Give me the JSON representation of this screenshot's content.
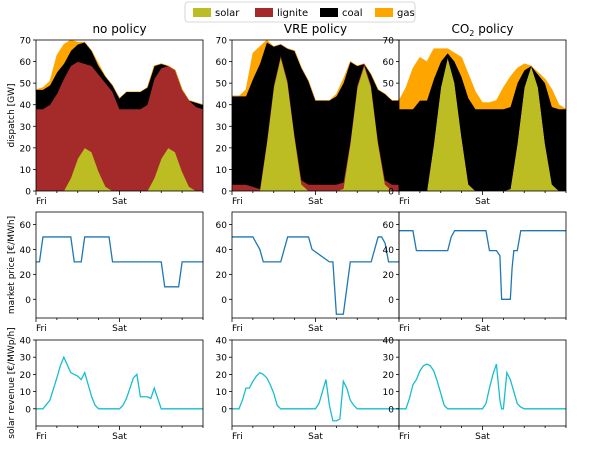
{
  "legend": {
    "placement": "top-center",
    "entries": [
      {
        "label": "solar",
        "color": "#bcbd22"
      },
      {
        "label": "lignite",
        "color": "#a52a2a"
      },
      {
        "label": "coal",
        "color": "#000000"
      },
      {
        "label": "gas",
        "color": "#ffa500"
      }
    ]
  },
  "columns": [
    {
      "title": "no policy"
    },
    {
      "title": "VRE policy"
    },
    {
      "title_prefix": "CO",
      "title_sub": "2",
      "title_suffix": " policy"
    }
  ],
  "rows": [
    {
      "ylabel": "dispatch [GW]"
    },
    {
      "ylabel": "market price [€/MWh]"
    },
    {
      "ylabel": "solar revenue [€/MWp/h]"
    }
  ],
  "x_ticks": [
    "Fri",
    "Sat"
  ],
  "colors": {
    "dispatch": [
      "#bcbd22",
      "#a52a2a",
      "#000000",
      "#ffa500"
    ],
    "price": "#1f77b4",
    "revenue": "#17becf"
  },
  "chart_data": [
    {
      "type": "area",
      "stacked": true,
      "panel": "no policy dispatch",
      "x_unit": "hours from Fri 00:00",
      "x": [
        0,
        2,
        4,
        6,
        8,
        10,
        12,
        14,
        16,
        18,
        20,
        22,
        24,
        26,
        28,
        30,
        32,
        34,
        36,
        38,
        40,
        42,
        44,
        46,
        48
      ],
      "ylim": [
        0,
        70
      ],
      "yticks": [
        0,
        10,
        20,
        30,
        40,
        50,
        60,
        70
      ],
      "series": [
        {
          "name": "solar",
          "values": [
            0,
            0,
            0,
            0,
            0,
            6,
            15,
            20,
            18,
            9,
            2,
            0,
            0,
            0,
            0,
            0,
            0,
            6,
            15,
            20,
            18,
            9,
            2,
            0,
            0
          ]
        },
        {
          "name": "lignite",
          "values": [
            38,
            38,
            40,
            45,
            52,
            52,
            45,
            39,
            40,
            45,
            48,
            46,
            38,
            38,
            38,
            38,
            40,
            46,
            42,
            38,
            38,
            38,
            40,
            39,
            38
          ]
        },
        {
          "name": "coal",
          "values": [
            9,
            9,
            9,
            10,
            7,
            7,
            8,
            10,
            7,
            4,
            3,
            3,
            5,
            8,
            8,
            8,
            8,
            6,
            2,
            0,
            0,
            0,
            0,
            2,
            2
          ]
        },
        {
          "name": "gas",
          "values": [
            0,
            1,
            2,
            8,
            9,
            5,
            1,
            0,
            0,
            1,
            0,
            0,
            0,
            0,
            0,
            0,
            0,
            0,
            0,
            0,
            0,
            0,
            0,
            0,
            0
          ]
        }
      ]
    },
    {
      "type": "area",
      "stacked": true,
      "panel": "VRE policy dispatch",
      "x_unit": "hours from Fri 00:00",
      "x": [
        0,
        2,
        4,
        6,
        8,
        10,
        12,
        14,
        16,
        18,
        20,
        22,
        24,
        26,
        28,
        30,
        32,
        34,
        36,
        38,
        40,
        42,
        44,
        46,
        48
      ],
      "ylim": [
        0,
        70
      ],
      "yticks": [
        0,
        10,
        20,
        30,
        40,
        50,
        60,
        70
      ],
      "series": [
        {
          "name": "solar",
          "values": [
            0,
            0,
            0,
            0,
            0,
            22,
            48,
            62,
            50,
            25,
            3,
            0,
            0,
            0,
            0,
            0,
            1,
            22,
            48,
            58,
            48,
            22,
            3,
            0,
            0
          ]
        },
        {
          "name": "lignite",
          "values": [
            3,
            3,
            3,
            2,
            1,
            1,
            1,
            1,
            1,
            1,
            2,
            3,
            3,
            3,
            3,
            3,
            3,
            1,
            1,
            1,
            1,
            1,
            2,
            3,
            3
          ]
        },
        {
          "name": "coal",
          "values": [
            41,
            41,
            41,
            50,
            58,
            46,
            18,
            5,
            15,
            39,
            52,
            48,
            39,
            39,
            39,
            41,
            46,
            37,
            9,
            0,
            5,
            24,
            40,
            39,
            39
          ]
        },
        {
          "name": "gas",
          "values": [
            0,
            0,
            3,
            12,
            8,
            1,
            0,
            0,
            0,
            0,
            0,
            0,
            0,
            0,
            0,
            1,
            2,
            0,
            0,
            0,
            0,
            0,
            0,
            0,
            0
          ]
        }
      ]
    },
    {
      "type": "area",
      "stacked": true,
      "panel": "CO2 policy dispatch",
      "x_unit": "hours from Fri 00:00",
      "x": [
        0,
        2,
        4,
        6,
        8,
        10,
        12,
        14,
        16,
        18,
        20,
        22,
        24,
        26,
        28,
        30,
        32,
        34,
        36,
        38,
        40,
        42,
        44,
        46,
        48
      ],
      "ylim": [
        0,
        70
      ],
      "yticks": [
        0,
        10,
        20,
        30,
        40,
        50,
        60,
        70
      ],
      "series": [
        {
          "name": "solar",
          "values": [
            0,
            0,
            0,
            0,
            0,
            22,
            48,
            62,
            50,
            25,
            3,
            0,
            0,
            0,
            0,
            0,
            1,
            22,
            48,
            58,
            48,
            22,
            3,
            0,
            0
          ]
        },
        {
          "name": "lignite",
          "values": [
            0,
            0,
            0,
            0,
            0,
            0,
            0,
            0,
            0,
            0,
            0,
            0,
            0,
            0,
            0,
            0,
            0,
            0,
            0,
            0,
            0,
            0,
            0,
            0,
            0
          ]
        },
        {
          "name": "coal",
          "values": [
            38,
            38,
            38,
            42,
            42,
            30,
            12,
            2,
            10,
            28,
            40,
            38,
            38,
            38,
            38,
            38,
            38,
            28,
            8,
            0,
            6,
            28,
            36,
            38,
            38
          ]
        },
        {
          "name": "gas",
          "values": [
            4,
            10,
            19,
            20,
            18,
            14,
            6,
            2,
            4,
            9,
            11,
            8,
            3,
            3,
            4,
            10,
            14,
            7,
            3,
            0,
            1,
            2,
            8,
            2,
            0
          ]
        }
      ]
    },
    {
      "type": "line",
      "panel": "no policy market price",
      "x_unit": "hours from Fri 00:00",
      "ylim": [
        -15,
        70
      ],
      "yticks": [
        0,
        20,
        40,
        60
      ],
      "series": [
        {
          "name": "",
          "x": [
            0,
            1,
            2,
            3,
            9,
            10,
            11,
            12,
            13,
            14,
            15,
            21,
            22,
            25,
            26,
            27,
            36,
            37,
            38,
            41,
            42,
            44,
            48
          ],
          "values": [
            30,
            30,
            50,
            50,
            50,
            50,
            30,
            30,
            30,
            50,
            50,
            50,
            30,
            30,
            30,
            30,
            30,
            10,
            10,
            10,
            30,
            30,
            30
          ]
        }
      ]
    },
    {
      "type": "line",
      "panel": "VRE policy market price",
      "x_unit": "hours from Fri 00:00",
      "ylim": [
        -15,
        70
      ],
      "yticks": [
        0,
        20,
        40,
        60
      ],
      "series": [
        {
          "name": "",
          "x": [
            0,
            6,
            7,
            8,
            9,
            14,
            15,
            16,
            17,
            22,
            23,
            28,
            29,
            30,
            31,
            32,
            34,
            40,
            41,
            42,
            43,
            44,
            45,
            47,
            48
          ],
          "values": [
            50,
            50,
            45,
            40,
            30,
            30,
            40,
            50,
            50,
            50,
            40,
            30,
            30,
            -12,
            -12,
            -12,
            30,
            30,
            40,
            50,
            50,
            45,
            30,
            30,
            30
          ]
        }
      ]
    },
    {
      "type": "line",
      "panel": "CO2 policy market price",
      "x_unit": "hours from Fri 00:00",
      "ylim": [
        -15,
        70
      ],
      "yticks": [
        0,
        20,
        40,
        60
      ],
      "series": [
        {
          "name": "",
          "x": [
            0,
            4,
            5,
            14,
            15,
            16,
            25,
            26,
            28,
            29,
            29.5,
            32,
            32.5,
            33,
            34,
            35,
            36,
            48
          ],
          "values": [
            55,
            55,
            39,
            39,
            50,
            55,
            55,
            39,
            39,
            35,
            0,
            0,
            25,
            39,
            39,
            55,
            55,
            55
          ]
        }
      ]
    },
    {
      "type": "line",
      "panel": "no policy solar revenue",
      "x_unit": "hours from Fri 00:00",
      "ylim": [
        -10,
        40
      ],
      "yticks": [
        0,
        10,
        20,
        30,
        40
      ],
      "series": [
        {
          "name": "",
          "x": [
            0,
            2,
            4,
            6,
            7,
            8,
            10,
            11,
            12,
            13,
            14,
            15,
            16,
            17,
            18,
            21,
            24,
            25,
            26,
            27,
            28,
            29,
            30,
            32,
            33,
            34,
            36,
            40,
            48
          ],
          "values": [
            0,
            0,
            5,
            18,
            25,
            30,
            21,
            20,
            19,
            17,
            21,
            14,
            7,
            2,
            0,
            0,
            0,
            2,
            6,
            12,
            18,
            20,
            7,
            7,
            6,
            12,
            0,
            0,
            0
          ]
        }
      ]
    },
    {
      "type": "line",
      "panel": "VRE policy solar revenue",
      "x_unit": "hours from Fri 00:00",
      "ylim": [
        -10,
        40
      ],
      "yticks": [
        0,
        10,
        20,
        30,
        40
      ],
      "series": [
        {
          "name": "",
          "x": [
            0,
            2,
            3,
            4,
            5,
            6,
            7,
            8,
            9,
            10,
            11,
            12,
            13,
            14,
            15,
            18,
            24,
            25,
            26,
            27,
            28,
            29,
            30,
            31,
            32,
            33,
            34,
            35,
            36,
            48
          ],
          "values": [
            0,
            0,
            5,
            12,
            12,
            16,
            19,
            21,
            20,
            18,
            14,
            9,
            2,
            0,
            0,
            0,
            0,
            3,
            10,
            17,
            2,
            -7,
            -7,
            -6,
            16,
            12,
            5,
            2,
            0,
            0
          ]
        }
      ]
    },
    {
      "type": "line",
      "panel": "CO2 policy solar revenue",
      "x_unit": "hours from Fri 00:00",
      "ylim": [
        -10,
        40
      ],
      "yticks": [
        0,
        10,
        20,
        30,
        40
      ],
      "series": [
        {
          "name": "",
          "x": [
            0,
            2,
            3,
            4,
            5,
            6,
            7,
            8,
            9,
            10,
            11,
            12,
            13,
            14,
            15,
            18,
            24,
            25,
            26,
            27,
            28,
            29,
            29.5,
            30,
            31,
            32,
            33,
            34,
            35,
            36,
            48
          ],
          "values": [
            0,
            0,
            6,
            14,
            17,
            22,
            25,
            26,
            25,
            22,
            16,
            9,
            2,
            0,
            0,
            0,
            0,
            3,
            12,
            20,
            26,
            5,
            0,
            0,
            21,
            17,
            10,
            3,
            1,
            0,
            0
          ]
        }
      ]
    }
  ]
}
